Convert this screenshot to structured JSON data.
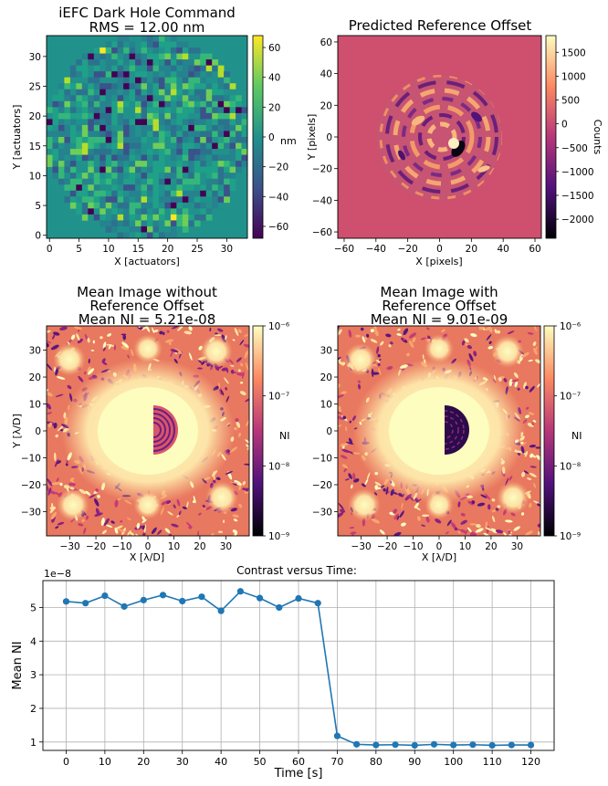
{
  "chart_data": [
    {
      "id": "dm-command",
      "type": "heatmap",
      "title": [
        "iEFC Dark Hole Command",
        "RMS = 12.00 nm"
      ],
      "xlabel": "X [actuators]",
      "ylabel": "Y [actuators]",
      "xticks": [
        "0",
        "5",
        "10",
        "15",
        "20",
        "25",
        "30"
      ],
      "yticks": [
        "0",
        "5",
        "10",
        "15",
        "20",
        "25",
        "30"
      ],
      "xlim": [
        -0.5,
        33.5
      ],
      "ylim": [
        -0.5,
        33.5
      ],
      "grid_size": 34,
      "colorbar": {
        "label": "nm",
        "ticks": [
          "60",
          "40",
          "20",
          "0",
          "−20",
          "−40",
          "−60"
        ],
        "range": [
          -68,
          68
        ],
        "colormap": "viridis"
      }
    },
    {
      "id": "ref-offset",
      "type": "heatmap",
      "title": [
        "Predicted Reference Offset"
      ],
      "xlabel": "X [pixels]",
      "ylabel": "Y [pixels]",
      "xticks": [
        "−60",
        "−40",
        "−20",
        "0",
        "20",
        "40",
        "60"
      ],
      "yticks": [
        "−60",
        "−40",
        "−20",
        "0",
        "20",
        "40",
        "60"
      ],
      "xlim": [
        -64,
        64
      ],
      "ylim": [
        -64,
        64
      ],
      "colorbar": {
        "label": "Counts",
        "ticks": [
          "1500",
          "1000",
          "500",
          "0",
          "−500",
          "−1000",
          "−1500",
          "−2000"
        ],
        "range": [
          -2400,
          1850
        ],
        "colormap": "magma"
      }
    },
    {
      "id": "img-without",
      "type": "heatmap",
      "title": [
        "Mean Image without",
        "Reference Offset",
        "Mean NI = 5.21e-08"
      ],
      "xlabel": "X [λ/D]",
      "ylabel": "Y [λ/D]",
      "xticks": [
        "−30",
        "−20",
        "−10",
        "0",
        "10",
        "20",
        "30"
      ],
      "yticks": [
        "30",
        "20",
        "10",
        "0",
        "−10",
        "−20",
        "−30"
      ],
      "xlim": [
        -39,
        39
      ],
      "ylim": [
        -39,
        39
      ],
      "colorbar": {
        "label": "NI",
        "ticks": [
          "10⁻⁶",
          "10⁻⁷",
          "10⁻⁸",
          "10⁻⁹"
        ],
        "range_log10": [
          -9,
          -6
        ],
        "colormap": "magma"
      }
    },
    {
      "id": "img-with",
      "type": "heatmap",
      "title": [
        "Mean Image with",
        "Reference Offset",
        "Mean NI = 9.01e-09"
      ],
      "xlabel": "X [λ/D]",
      "ylabel": "",
      "xticks": [
        "−30",
        "−20",
        "−10",
        "0",
        "10",
        "20",
        "30"
      ],
      "yticks": [
        "30",
        "20",
        "10",
        "0",
        "−10",
        "−20",
        "−30"
      ],
      "xlim": [
        -39,
        39
      ],
      "ylim": [
        -39,
        39
      ],
      "colorbar": {
        "label": "NI",
        "ticks": [
          "10⁻⁶",
          "10⁻⁷",
          "10⁻⁸",
          "10⁻⁹"
        ],
        "range_log10": [
          -9,
          -6
        ],
        "colormap": "magma"
      }
    },
    {
      "id": "contrast-time",
      "type": "line",
      "title": "Contrast versus Time:",
      "xlabel": "Time [s]",
      "ylabel": "Mean NI",
      "offset_label": "1e−8",
      "x": [
        0,
        5,
        10,
        15,
        20,
        25,
        30,
        35,
        40,
        45,
        50,
        55,
        60,
        65,
        70,
        75,
        80,
        85,
        90,
        95,
        100,
        105,
        110,
        115,
        120
      ],
      "series": [
        {
          "name": "Mean NI",
          "color": "#1f77b4",
          "values": [
            5.18,
            5.13,
            5.35,
            5.03,
            5.22,
            5.37,
            5.19,
            5.32,
            4.9,
            5.48,
            5.28,
            5.0,
            5.27,
            5.13,
            1.18,
            0.93,
            0.91,
            0.92,
            0.9,
            0.93,
            0.91,
            0.92,
            0.9,
            0.91,
            0.91
          ]
        }
      ],
      "xticks": [
        "0",
        "10",
        "20",
        "30",
        "40",
        "50",
        "60",
        "70",
        "80",
        "90",
        "100",
        "110",
        "120"
      ],
      "yticks": [
        "1",
        "2",
        "3",
        "4",
        "5"
      ],
      "xlim": [
        -6,
        126
      ],
      "ylim": [
        0.75,
        5.8
      ],
      "grid": true
    }
  ]
}
